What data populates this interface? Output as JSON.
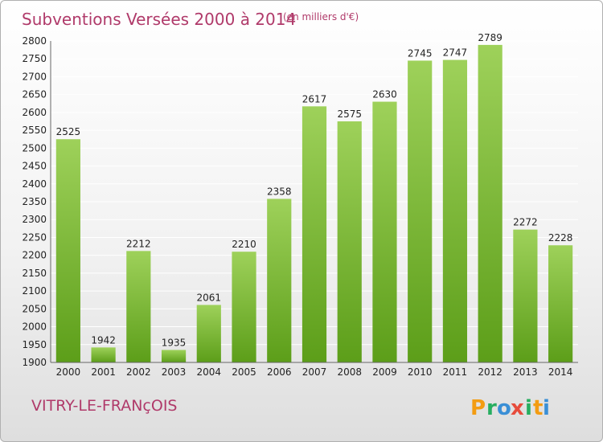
{
  "header": {
    "title": "Subventions Versées 2000 à 2014",
    "subtitle": "(en milliers d'€)"
  },
  "footer": {
    "city": "VITRY-LE-FRANçOIS",
    "logo": [
      "P",
      "r",
      "o",
      "x",
      "i",
      "t",
      "i"
    ]
  },
  "colors": {
    "title": "#b03a6a",
    "bar_top": "#9ed15a",
    "bar_bottom": "#5c9e19",
    "logo": [
      "#f39c12",
      "#27ae60",
      "#3a8fd6",
      "#e74c3c",
      "#27ae60",
      "#f39c12",
      "#3a8fd6"
    ]
  },
  "chart_data": {
    "type": "bar",
    "categories": [
      "2000",
      "2001",
      "2002",
      "2003",
      "2004",
      "2005",
      "2006",
      "2007",
      "2008",
      "2009",
      "2010",
      "2011",
      "2012",
      "2013",
      "2014"
    ],
    "values": [
      2525,
      1942,
      2212,
      1935,
      2061,
      2210,
      2358,
      2617,
      2575,
      2630,
      2745,
      2747,
      2789,
      2272,
      2228
    ],
    "title": "Subventions Versées 2000 à 2014",
    "subtitle": "(en milliers d'€)",
    "ylim": [
      1900,
      2800
    ],
    "yticks": [
      1900,
      1950,
      2000,
      2050,
      2100,
      2150,
      2200,
      2250,
      2300,
      2350,
      2400,
      2450,
      2500,
      2550,
      2600,
      2650,
      2700,
      2750,
      2800
    ],
    "grid": true,
    "legend": "none"
  }
}
